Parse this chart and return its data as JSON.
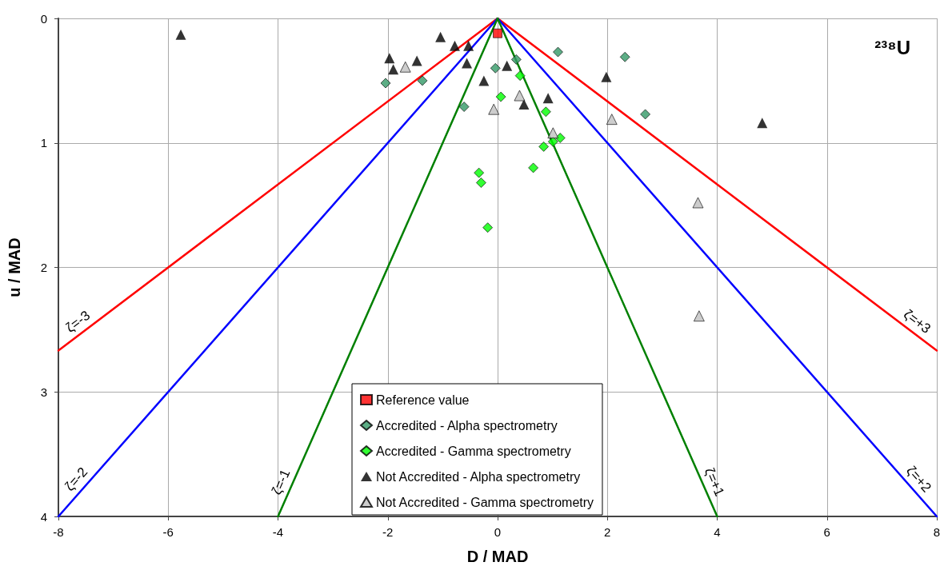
{
  "chart_data": {
    "type": "scatter",
    "title": "²³⁸U",
    "xlabel": "D / MAD",
    "ylabel": "u / MAD",
    "xlim": [
      -8,
      8
    ],
    "xticks": [
      -8,
      -6,
      -4,
      -2,
      0,
      2,
      4,
      6,
      8
    ],
    "ylim": [
      4,
      0
    ],
    "yticks": [
      0,
      1,
      2,
      3,
      4
    ],
    "grid": true,
    "legend": "bottom",
    "series": [
      {
        "type": "line",
        "name": "ζ=-3",
        "color": "#ff0000",
        "marker": "none",
        "x": [
          -8,
          0
        ],
        "values": [
          2.667,
          0
        ]
      },
      {
        "type": "line",
        "name": "ζ=+3",
        "color": "#ff0000",
        "marker": "none",
        "x": [
          0,
          8
        ],
        "values": [
          0,
          2.667
        ]
      },
      {
        "type": "line",
        "name": "ζ=-2",
        "color": "#0000ff",
        "marker": "none",
        "x": [
          -8,
          0
        ],
        "values": [
          4,
          0
        ]
      },
      {
        "type": "line",
        "name": "ζ=+2",
        "color": "#0000ff",
        "marker": "none",
        "x": [
          0,
          8
        ],
        "values": [
          0,
          4
        ]
      },
      {
        "type": "line",
        "name": "ζ=-1",
        "color": "#008000",
        "marker": "none",
        "x": [
          -4,
          0
        ],
        "values": [
          4,
          0
        ]
      },
      {
        "type": "line",
        "name": "ζ=+1",
        "color": "#008000",
        "marker": "none",
        "x": [
          0,
          4
        ],
        "values": [
          0,
          4
        ]
      },
      {
        "name": "Reference value",
        "color": "#ff0000",
        "marker": "square",
        "x": [
          0.0
        ],
        "values": [
          0.12
        ]
      },
      {
        "name": "Accredited - Alpha spectrometry",
        "color": "#339966",
        "marker": "diamond",
        "x": [
          -2.04,
          -1.37,
          -0.04,
          0.34,
          1.1,
          2.32,
          2.69,
          -0.61
        ],
        "values": [
          0.52,
          0.5,
          0.4,
          0.33,
          0.27,
          0.31,
          0.77,
          0.71
        ]
      },
      {
        "name": "Accredited - Gamma spectrometry",
        "color": "#00ff00",
        "marker": "diamond",
        "x": [
          0.41,
          0.06,
          0.88,
          1.14,
          1.01,
          0.84,
          0.65,
          -0.34,
          -0.3,
          -0.18
        ],
        "values": [
          0.46,
          0.63,
          0.75,
          0.96,
          0.99,
          1.03,
          1.2,
          1.24,
          1.32,
          1.68
        ]
      },
      {
        "name": "Not Accredited - Alpha spectrometry",
        "color": "#000000",
        "marker": "triangle",
        "x": [
          -5.77,
          -1.04,
          -0.78,
          -0.53,
          -1.97,
          -1.9,
          -1.47,
          -0.56,
          0.17,
          -0.25,
          0.48,
          0.92,
          1.98,
          4.82
        ],
        "values": [
          0.13,
          0.15,
          0.22,
          0.22,
          0.32,
          0.41,
          0.34,
          0.36,
          0.38,
          0.5,
          0.69,
          0.64,
          0.47,
          0.84
        ]
      },
      {
        "name": "Not Accredited - Gamma spectrometry",
        "color": "#c0c0c0",
        "marker": "triangle",
        "x": [
          -1.68,
          0.4,
          -0.07,
          1.01,
          2.08,
          3.65,
          3.67
        ],
        "values": [
          0.39,
          0.62,
          0.73,
          0.92,
          0.81,
          1.48,
          2.39
        ]
      }
    ]
  }
}
